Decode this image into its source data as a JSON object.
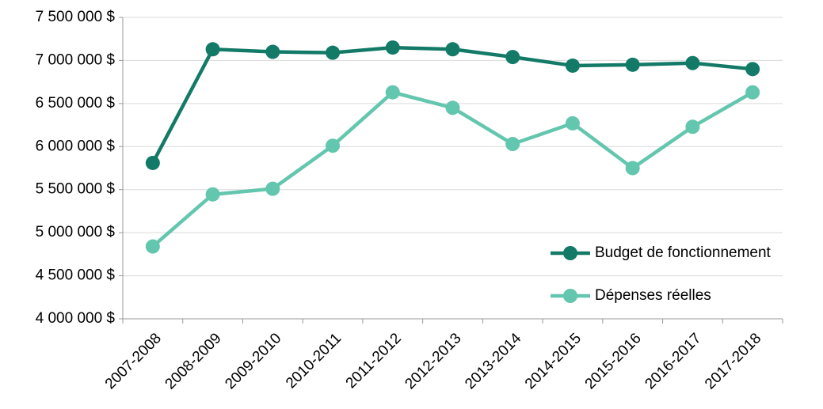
{
  "chart_data": {
    "type": "line",
    "categories": [
      "2007-2008",
      "2008-2009",
      "2009-2010",
      "2010-2011",
      "2011-2012",
      "2012-2013",
      "2013-2014",
      "2014-2015",
      "2015-2016",
      "2016-2017",
      "2017-2018"
    ],
    "series": [
      {
        "name": "Budget de fonctionnement",
        "color": "#137a68",
        "values": [
          5810000,
          7130000,
          7100000,
          7090000,
          7150000,
          7130000,
          7040000,
          6940000,
          6950000,
          6970000,
          6900000
        ]
      },
      {
        "name": "Dépenses réelles",
        "color": "#63c6ae",
        "values": [
          4840000,
          5445000,
          5510000,
          6010000,
          6630000,
          6450000,
          6030000,
          6270000,
          5750000,
          6230000,
          6630000
        ]
      }
    ],
    "ylim": [
      4000000,
      7500000
    ],
    "yticks": [
      {
        "value": 4000000,
        "label": "4 000 000 $"
      },
      {
        "value": 4500000,
        "label": "4 500 000 $"
      },
      {
        "value": 5000000,
        "label": "5 000 000 $"
      },
      {
        "value": 5500000,
        "label": "5 500 000 $"
      },
      {
        "value": 6000000,
        "label": "6 000 000 $"
      },
      {
        "value": 6500000,
        "label": "6 500 000 $"
      },
      {
        "value": 7000000,
        "label": "7 000 000 $"
      },
      {
        "value": 7500000,
        "label": "7 500 000 $"
      }
    ],
    "grid": true,
    "legend": "lower right"
  }
}
